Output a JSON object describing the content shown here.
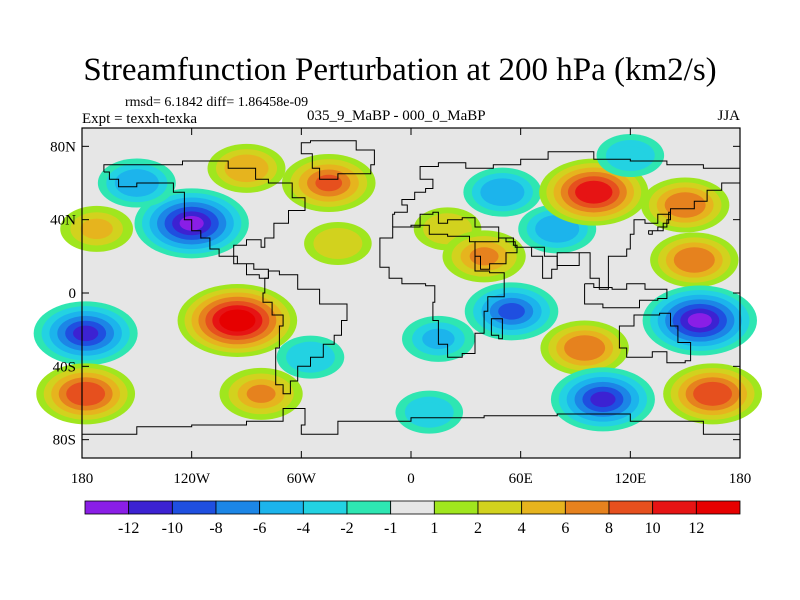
{
  "chart_data": {
    "type": "heatmap",
    "title": "Streamfunction Perturbation at 200 hPa (km2/s)",
    "stats_text": "rmsd= 6.1842 diff= 1.86458e-09",
    "left_label": "Expt = texxh-texka",
    "center_label": "035_9_MaBP - 000_0_MaBP",
    "right_label": "JJA",
    "x_ticks": [
      "180",
      "120W",
      "60W",
      "0",
      "60E",
      "120E",
      "180"
    ],
    "y_ticks": [
      "80N",
      "40N",
      "0",
      "40S",
      "80S"
    ],
    "x_range": [
      -180,
      180
    ],
    "y_range": [
      -90,
      90
    ],
    "colorbar": {
      "labels": [
        "-12",
        "-10",
        "-8",
        "-6",
        "-4",
        "-2",
        "-1",
        "1",
        "2",
        "4",
        "6",
        "8",
        "10",
        "12"
      ],
      "colors": [
        "#8a1ee6",
        "#3c22d2",
        "#1f4fe0",
        "#1c86e6",
        "#1cb4ec",
        "#23d2e2",
        "#2ee6b2",
        "#e6e6e6",
        "#a0e61e",
        "#d2d21e",
        "#e6b41e",
        "#e6821e",
        "#e6501e",
        "#e61414",
        "#e60000"
      ]
    },
    "anomaly_centers": [
      {
        "lon": -120,
        "lat": 38,
        "value": -12
      },
      {
        "lon": -95,
        "lat": -15,
        "value": 13
      },
      {
        "lon": -172,
        "lat": 35,
        "value": 4
      },
      {
        "lon": -178,
        "lat": -22,
        "value": -10
      },
      {
        "lon": -178,
        "lat": -55,
        "value": 9
      },
      {
        "lon": -150,
        "lat": 60,
        "value": -5
      },
      {
        "lon": -90,
        "lat": 68,
        "value": 5
      },
      {
        "lon": -45,
        "lat": 60,
        "value": 8
      },
      {
        "lon": -40,
        "lat": 27,
        "value": 3
      },
      {
        "lon": -82,
        "lat": -55,
        "value": 6
      },
      {
        "lon": -55,
        "lat": -35,
        "value": -3
      },
      {
        "lon": 20,
        "lat": 35,
        "value": 3
      },
      {
        "lon": 40,
        "lat": 20,
        "value": 6
      },
      {
        "lon": 55,
        "lat": -10,
        "value": -8
      },
      {
        "lon": 50,
        "lat": 55,
        "value": -5
      },
      {
        "lon": 80,
        "lat": 35,
        "value": -5
      },
      {
        "lon": 100,
        "lat": 55,
        "value": 11
      },
      {
        "lon": 120,
        "lat": 75,
        "value": -3
      },
      {
        "lon": 150,
        "lat": 48,
        "value": 7
      },
      {
        "lon": 155,
        "lat": 18,
        "value": 7
      },
      {
        "lon": 158,
        "lat": -15,
        "value": -12
      },
      {
        "lon": 95,
        "lat": -30,
        "value": 7
      },
      {
        "lon": 105,
        "lat": -58,
        "value": -10
      },
      {
        "lon": 165,
        "lat": -55,
        "value": 9
      },
      {
        "lon": 10,
        "lat": -65,
        "value": -3
      },
      {
        "lon": 15,
        "lat": -25,
        "value": -4
      }
    ]
  }
}
